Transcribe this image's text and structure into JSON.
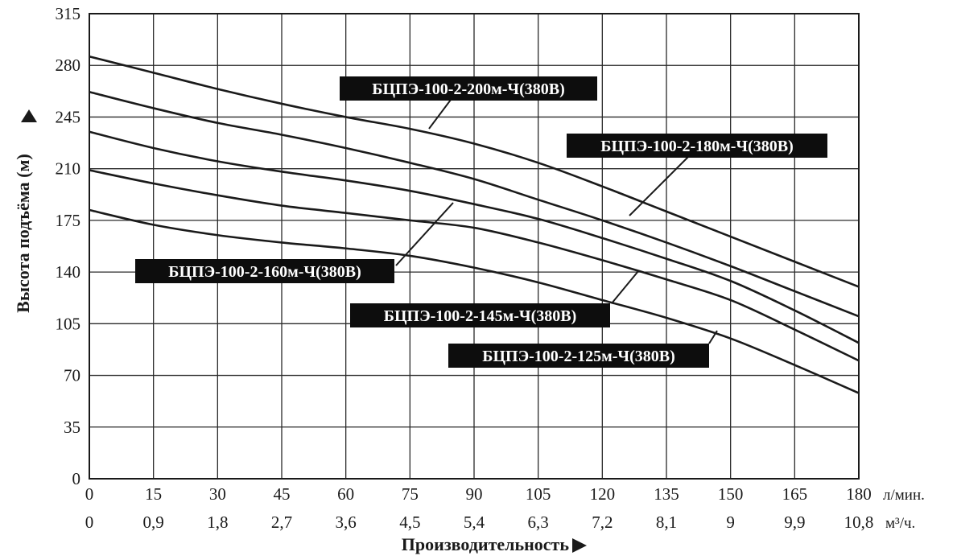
{
  "chart_data": {
    "type": "line",
    "xlabel": "Производительность",
    "ylabel": "Высота подъёма (м)",
    "x_unit_primary": "л/мин.",
    "x_unit_secondary": "м³/ч.",
    "xlim": [
      0,
      180
    ],
    "ylim": [
      0,
      315
    ],
    "x_ticks": [
      "0",
      "15",
      "30",
      "45",
      "60",
      "75",
      "90",
      "105",
      "120",
      "135",
      "150",
      "165",
      "180"
    ],
    "x_ticks_secondary": [
      "0",
      "0,9",
      "1,8",
      "2,7",
      "3,6",
      "4,5",
      "5,4",
      "6,3",
      "7,2",
      "8,1",
      "9",
      "9,9",
      "10,8"
    ],
    "y_ticks": [
      "0",
      "35",
      "70",
      "105",
      "140",
      "175",
      "210",
      "245",
      "280",
      "315"
    ],
    "grid": true,
    "x": [
      0,
      15,
      30,
      45,
      60,
      75,
      90,
      105,
      120,
      135,
      150,
      165,
      180
    ],
    "series": [
      {
        "name": "БЦПЭ-100-2-200м-Ч(380В)",
        "values": [
          286,
          275,
          264,
          254,
          245,
          237,
          227,
          214,
          198,
          181,
          164,
          147,
          130
        ]
      },
      {
        "name": "БЦПЭ-100-2-180м-Ч(380В)",
        "values": [
          262,
          251,
          241,
          233,
          224,
          214,
          203,
          189,
          175,
          160,
          144,
          127,
          110
        ]
      },
      {
        "name": "БЦПЭ-100-2-160м-Ч(380В)",
        "values": [
          235,
          224,
          215,
          208,
          202,
          195,
          186,
          176,
          163,
          149,
          134,
          114,
          92
        ]
      },
      {
        "name": "БЦПЭ-100-2-145м-Ч(380В)",
        "values": [
          209,
          200,
          192,
          185,
          180,
          175,
          170,
          160,
          148,
          135,
          121,
          101,
          80
        ]
      },
      {
        "name": "БЦПЭ-100-2-125м-Ч(380В)",
        "values": [
          182,
          172,
          165,
          160,
          156,
          151,
          143,
          133,
          121,
          109,
          95,
          77,
          58
        ]
      }
    ]
  }
}
